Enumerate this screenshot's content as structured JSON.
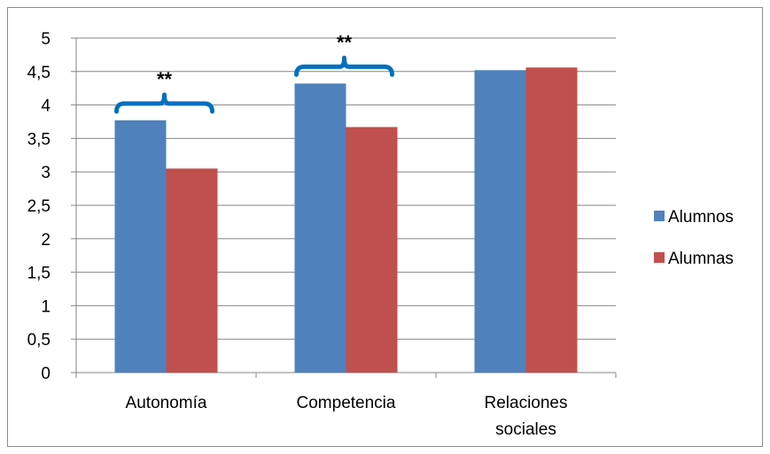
{
  "chart_data": {
    "type": "bar",
    "categories": [
      "Autonomía",
      "Competencia",
      "Relaciones sociales"
    ],
    "category_lines": [
      [
        "Autonomía"
      ],
      [
        "Competencia"
      ],
      [
        "Relaciones",
        "sociales"
      ]
    ],
    "series": [
      {
        "name": "Alumnos",
        "color": "#4f81bd",
        "values": [
          3.77,
          4.32,
          4.52
        ]
      },
      {
        "name": "Alumnas",
        "color": "#c0504d",
        "values": [
          3.05,
          3.67,
          4.56
        ]
      }
    ],
    "ylim": [
      0,
      5
    ],
    "yticks": [
      0,
      0.5,
      1,
      1.5,
      2,
      2.5,
      3,
      3.5,
      4,
      4.5,
      5
    ],
    "ytick_labels": [
      "0",
      "0,5",
      "1",
      "1,5",
      "2",
      "2,5",
      "3",
      "3,5",
      "4",
      "4,5",
      "5"
    ],
    "grid": true,
    "legend_position": "right",
    "significance": [
      {
        "category_index": 0,
        "label": "**"
      },
      {
        "category_index": 1,
        "label": "**"
      }
    ],
    "bracket_color": "#0070c0",
    "xlabel": "",
    "ylabel": "",
    "title": ""
  }
}
